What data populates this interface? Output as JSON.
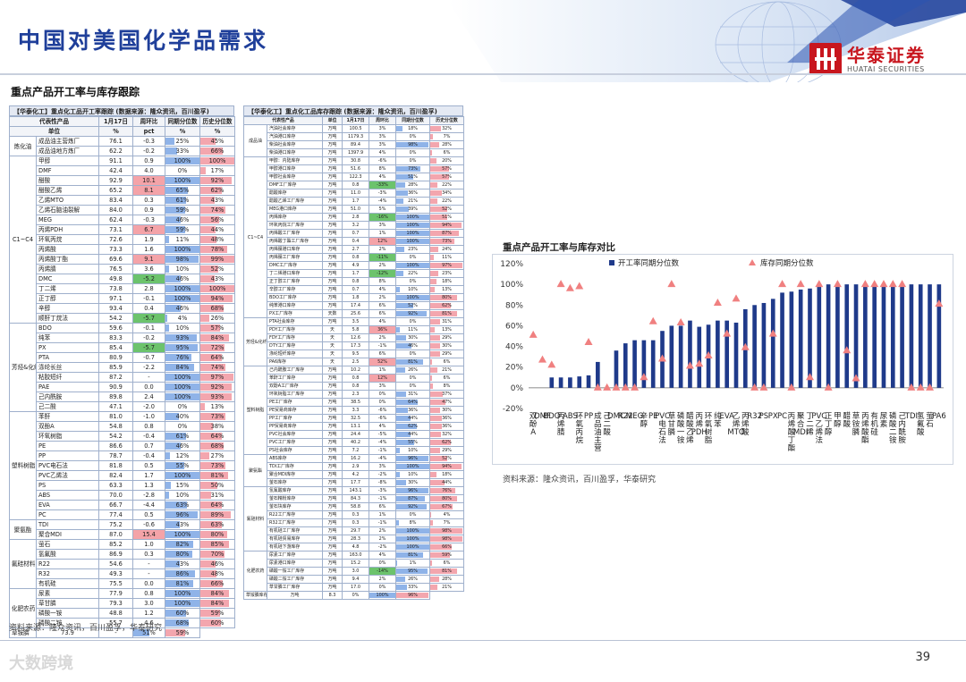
{
  "title": "中国对美国化学品需求",
  "section_title": "重点产品开工率与库存跟踪",
  "logo": {
    "cn": "华泰证券",
    "en": "HUATAI SECURITIES"
  },
  "page_number": "39",
  "watermark": "大数跨境",
  "left_table": {
    "caption": "【华泰化工】重点化工品开工率跟踪 (数据来源：隆众资讯，百川盈孚)",
    "headers": [
      "代表性产品",
      "1月17日",
      "周环比",
      "同期分位数",
      "历史分位数"
    ],
    "units": [
      "单位",
      "%",
      "pct",
      "%",
      "%"
    ],
    "groups": [
      {
        "name": "炼化油",
        "rows": 2
      },
      {
        "name": "C1~C4",
        "rows": 17
      },
      {
        "name": "芳烃&化纤",
        "rows": 9
      },
      {
        "name": "塑料树脂",
        "rows": 11
      },
      {
        "name": "聚氨酯",
        "rows": 2
      },
      {
        "name": "氟硅材料",
        "rows": 5
      },
      {
        "name": "化肥农药",
        "rows": 4
      }
    ],
    "rows": [
      [
        "成品油主营炼厂",
        "76.1",
        "-0.3",
        "25%",
        "45%"
      ],
      [
        "成品油地方炼厂",
        "62.2",
        "-0.2",
        "33%",
        "66%"
      ],
      [
        "甲醇",
        "91.1",
        "0.9",
        "100%",
        "100%"
      ],
      [
        "DMF",
        "42.4",
        "4.0",
        "0%",
        "17%"
      ],
      [
        "醋酸",
        "92.9",
        "10.1",
        "100%",
        "92%"
      ],
      [
        "醋酸乙烯",
        "65.2",
        "8.1",
        "65%",
        "62%"
      ],
      [
        "乙烯MTO",
        "83.4",
        "0.3",
        "61%",
        "43%"
      ],
      [
        "乙烯石脑油裂解",
        "84.0",
        "0.9",
        "59%",
        "74%"
      ],
      [
        "MEG",
        "62.4",
        "-0.3",
        "46%",
        "56%"
      ],
      [
        "丙烯PDH",
        "73.1",
        "6.7",
        "59%",
        "44%"
      ],
      [
        "环氧丙烷",
        "72.6",
        "1.9",
        "11%",
        "48%"
      ],
      [
        "丙烯酸",
        "73.3",
        "1.6",
        "100%",
        "78%"
      ],
      [
        "丙烯酸丁酯",
        "69.6",
        "9.1",
        "98%",
        "99%"
      ],
      [
        "丙烯腈",
        "76.5",
        "3.6",
        "10%",
        "52%"
      ],
      [
        "DMC",
        "49.8",
        "-5.2",
        "46%",
        "43%"
      ],
      [
        "丁二烯",
        "73.8",
        "2.8",
        "100%",
        "100%"
      ],
      [
        "正丁醇",
        "97.1",
        "-0.1",
        "100%",
        "94%"
      ],
      [
        "辛醇",
        "93.4",
        "0.4",
        "46%",
        "68%"
      ],
      [
        "顺酐丁烷法",
        "54.2",
        "-5.7",
        "4%",
        "26%"
      ],
      [
        "BDO",
        "59.6",
        "-0.1",
        "10%",
        "57%"
      ],
      [
        "纯苯",
        "83.3",
        "-0.2",
        "93%",
        "84%"
      ],
      [
        "PX",
        "85.4",
        "-5.7",
        "95%",
        "72%"
      ],
      [
        "PTA",
        "80.9",
        "-0.7",
        "76%",
        "64%"
      ],
      [
        "涤纶长丝",
        "85.9",
        "-2.2",
        "84%",
        "74%"
      ],
      [
        "粘胶短纤",
        "87.2",
        "-",
        "100%",
        "97%"
      ],
      [
        "PAE",
        "90.9",
        "0.0",
        "100%",
        "92%"
      ],
      [
        "己内酰胺",
        "89.8",
        "2.4",
        "100%",
        "93%"
      ],
      [
        "己二酸",
        "47.1",
        "-2.0",
        "0%",
        "13%"
      ],
      [
        "苯酐",
        "81.0",
        "-1.0",
        "40%",
        "73%"
      ],
      [
        "双酚A",
        "54.8",
        "0.8",
        "0%",
        "38%"
      ],
      [
        "环氧树脂",
        "54.2",
        "-0.4",
        "61%",
        "64%"
      ],
      [
        "PE",
        "86.6",
        "0.7",
        "46%",
        "68%"
      ],
      [
        "PP",
        "78.7",
        "-0.4",
        "12%",
        "27%"
      ],
      [
        "PVC电石法",
        "81.8",
        "0.5",
        "55%",
        "73%"
      ],
      [
        "PVC乙烯法",
        "82.4",
        "1.7",
        "100%",
        "81%"
      ],
      [
        "PS",
        "63.3",
        "1.3",
        "15%",
        "50%"
      ],
      [
        "ABS",
        "70.0",
        "-2.8",
        "10%",
        "31%"
      ],
      [
        "EVA",
        "66.7",
        "-4.4",
        "63%",
        "64%"
      ],
      [
        "PC",
        "77.4",
        "0.5",
        "96%",
        "89%"
      ],
      [
        "TDI",
        "75.2",
        "-0.6",
        "43%",
        "63%"
      ],
      [
        "聚合MDI",
        "87.0",
        "15.4",
        "100%",
        "80%"
      ],
      [
        "萤石",
        "85.2",
        "1.0",
        "82%",
        "85%"
      ],
      [
        "氢氟酸",
        "86.9",
        "0.3",
        "80%",
        "70%"
      ],
      [
        "R22",
        "54.6",
        "-",
        "43%",
        "46%"
      ],
      [
        "R32",
        "49.3",
        "-",
        "86%",
        "48%"
      ],
      [
        "有机硅",
        "75.5",
        "0.0",
        "81%",
        "66%"
      ],
      [
        "尿素",
        "77.9",
        "0.8",
        "100%",
        "84%"
      ],
      [
        "草甘膦",
        "79.3",
        "3.0",
        "100%",
        "84%"
      ],
      [
        "磷酸一铵",
        "48.8",
        "1.2",
        "60%",
        "59%"
      ],
      [
        "磷酸二铵",
        "55.7",
        "4.6",
        "68%",
        "60%"
      ],
      [
        "草铵膦",
        "73.9",
        "-",
        "51%",
        "59%"
      ]
    ],
    "source": "资料来源：隆众资讯，百川盈孚，华泰研究"
  },
  "right_table": {
    "caption": "【华泰化工】重点化工品库存跟踪 (数据来源：隆众资讯，百川盈孚)",
    "headers": [
      "代表性产品",
      "单位",
      "1月17日",
      "周环比",
      "同期分位数",
      "历史分位数"
    ],
    "groups": [
      {
        "name": "成品油",
        "rows": 4
      },
      {
        "name": "C1~C4",
        "rows": 20
      },
      {
        "name": "芳烃&化纤",
        "rows": 6
      },
      {
        "name": "塑料树脂",
        "rows": 11
      },
      {
        "name": "聚氨酯",
        "rows": 4
      },
      {
        "name": "氟硅材料",
        "rows": 8
      },
      {
        "name": "化肥农药",
        "rows": 5
      }
    ],
    "rows": [
      [
        "汽油社会库存",
        "万吨",
        "100.5",
        "3%",
        "18%",
        "32%"
      ],
      [
        "汽油港口库存",
        "万吨",
        "1179.3",
        "3%",
        "0%",
        "7%"
      ],
      [
        "柴油社会库存",
        "万吨",
        "89.4",
        "3%",
        "98%",
        "28%"
      ],
      [
        "柴油港口库存",
        "万吨",
        "1397.9",
        "4%",
        "0%",
        "6%"
      ],
      [
        "甲醇：内陆库存",
        "万吨",
        "30.8",
        "-6%",
        "0%",
        "20%"
      ],
      [
        "甲醇港口库存",
        "万吨",
        "51.6",
        "8%",
        "73%",
        "57%"
      ],
      [
        "甲醇社会库存",
        "万吨",
        "122.3",
        "4%",
        "51%",
        "57%"
      ],
      [
        "DMF工厂库存",
        "万吨",
        "0.8",
        "-33%",
        "28%",
        "22%"
      ],
      [
        "醋酸库存",
        "万吨",
        "11.0",
        "-3%",
        "36%",
        "34%"
      ],
      [
        "醋酸乙烯工厂库存",
        "万吨",
        "1.7",
        "-4%",
        "21%",
        "22%"
      ],
      [
        "MEG港口库存",
        "万吨",
        "51.0",
        "5%",
        "39%",
        "52%"
      ],
      [
        "丙烯库存",
        "万吨",
        "2.8",
        "-16%",
        "100%",
        "51%"
      ],
      [
        "环氧丙烷工厂库存",
        "万吨",
        "3.2",
        "3%",
        "100%",
        "94%"
      ],
      [
        "丙烯酸工厂库存",
        "万吨",
        "0.7",
        "1%",
        "100%",
        "87%"
      ],
      [
        "丙烯酸丁酯工厂库存",
        "万吨",
        "0.4",
        "12%",
        "100%",
        "73%"
      ],
      [
        "丙烯腈港口库存",
        "万吨",
        "2.7",
        "2%",
        "23%",
        "24%"
      ],
      [
        "丙烯腈工厂库存",
        "万吨",
        "0.8",
        "-11%",
        "0%",
        "11%"
      ],
      [
        "DMC工厂库存",
        "万吨",
        "4.9",
        "2%",
        "100%",
        "97%"
      ],
      [
        "丁二烯港口库存",
        "万吨",
        "1.7",
        "-12%",
        "22%",
        "23%"
      ],
      [
        "正丁醇工厂库存",
        "万吨",
        "0.8",
        "8%",
        "0%",
        "18%"
      ],
      [
        "辛醇工厂库存",
        "万吨",
        "0.7",
        "4%",
        "10%",
        "13%"
      ],
      [
        "BDO工厂库存",
        "万吨",
        "1.8",
        "2%",
        "100%",
        "80%"
      ],
      [
        "纯苯港口库存",
        "万吨",
        "17.4",
        "6%",
        "52%",
        "62%"
      ],
      [
        "PX工厂库存",
        "天数",
        "25.6",
        "6%",
        "92%",
        "81%"
      ],
      [
        "PTA社会库存",
        "万吨",
        "3.5",
        "4%",
        "0%",
        "31%"
      ],
      [
        "PDY工厂库存",
        "天",
        "5.8",
        "36%",
        "11%",
        "13%"
      ],
      [
        "FDY工厂库存",
        "天",
        "12.6",
        "2%",
        "30%",
        "29%"
      ],
      [
        "DTY工厂库存",
        "天",
        "17.3",
        "-1%",
        "46%",
        "30%"
      ],
      [
        "涤纶短纤库存",
        "天",
        "9.5",
        "6%",
        "0%",
        "29%"
      ],
      [
        "PA6库存",
        "天",
        "2.5",
        "52%",
        "81%",
        "6%"
      ],
      [
        "己内酰胺工厂库存",
        "万吨",
        "10.2",
        "1%",
        "26%",
        "21%"
      ],
      [
        "苯酐工厂库存",
        "万吨",
        "0.8",
        "12%",
        "0%",
        "6%"
      ],
      [
        "双酚A工厂库存",
        "万吨",
        "0.8",
        "3%",
        "0%",
        "8%"
      ],
      [
        "环氧树脂工厂库存",
        "万吨",
        "2.3",
        "0%",
        "31%",
        "37%"
      ],
      [
        "PE工厂库存",
        "万吨",
        "38.5",
        "0%",
        "64%",
        "47%"
      ],
      [
        "PE贸易商库存",
        "万吨",
        "3.3",
        "-6%",
        "36%",
        "30%"
      ],
      [
        "PP工厂库存",
        "万吨",
        "32.5",
        "-6%",
        "44%",
        "36%"
      ],
      [
        "PP贸易商库存",
        "万吨",
        "13.1",
        "4%",
        "62%",
        "36%"
      ],
      [
        "PVC社会库存",
        "万吨",
        "24.4",
        "-5%",
        "44%",
        "32%"
      ],
      [
        "PVC工厂库存",
        "万吨",
        "40.2",
        "-4%",
        "55%",
        "62%"
      ],
      [
        "PS社会库存",
        "万吨",
        "7.2",
        "-1%",
        "10%",
        "29%"
      ],
      [
        "ABS库存",
        "万吨",
        "16.2",
        "-4%",
        "96%",
        "52%"
      ],
      [
        "TDI工厂库存",
        "万吨",
        "2.9",
        "3%",
        "100%",
        "94%"
      ],
      [
        "聚合MDI库存",
        "万吨",
        "4.2",
        "-2%",
        "10%",
        "18%"
      ],
      [
        "萤石库存",
        "万吨",
        "17.7",
        "-8%",
        "30%",
        "44%"
      ],
      [
        "氢氟酸库存",
        "万吨",
        "143.1",
        "-3%",
        "96%",
        "76%"
      ],
      [
        "萤石精粉库存",
        "万吨",
        "84.3",
        "-1%",
        "87%",
        "80%"
      ],
      [
        "萤石块库存",
        "万吨",
        "58.8",
        "6%",
        "92%",
        "67%"
      ],
      [
        "R22工厂库存",
        "万吨",
        "0.3",
        "1%",
        "0%",
        "4%"
      ],
      [
        "R32工厂库存",
        "万吨",
        "0.3",
        "-1%",
        "8%",
        "7%"
      ],
      [
        "有机硅工厂库存",
        "万吨",
        "29.7",
        "2%",
        "100%",
        "98%"
      ],
      [
        "有机硅贸易库存",
        "万吨",
        "28.3",
        "2%",
        "100%",
        "98%"
      ],
      [
        "有机硅下游库存",
        "万吨",
        "4.8",
        "-2%",
        "100%",
        "66%"
      ],
      [
        "尿素工厂库存",
        "万吨",
        "163.0",
        "4%",
        "81%",
        "59%"
      ],
      [
        "尿素港口库存",
        "万吨",
        "15.2",
        "0%",
        "1%",
        "6%"
      ],
      [
        "磷酸一铵工厂库存",
        "万吨",
        "3.0",
        "-14%",
        "95%",
        "81%"
      ],
      [
        "磷酸二铵工厂库存",
        "万吨",
        "9.4",
        "2%",
        "26%",
        "28%"
      ],
      [
        "草甘膦工厂库存",
        "万吨",
        "17.0",
        "0%",
        "33%",
        "21%"
      ],
      [
        "草铵膦库存",
        "万吨",
        "8.3",
        "0%",
        "100%",
        "96%"
      ]
    ]
  },
  "chart": {
    "title": "重点产品开工率与库存对比",
    "source": "资料来源：隆众资讯，百川盈孚，华泰研究",
    "legend": [
      "开工率同期分位数",
      "库存同期分位数"
    ]
  },
  "chart_data": {
    "type": "bar",
    "categories": [
      "双酚A",
      "DMF",
      "BDO",
      "丙烯腈",
      "ABS",
      "环氧丙烷",
      "PP",
      "成品油主营",
      "己二酸",
      "DMC",
      "R22",
      "MEG",
      "辛醇",
      "PE",
      "PVC电石法",
      "草甘膦",
      "磷酸一铵",
      "醋酸乙烯",
      "丙烯PDH",
      "环氧树脂",
      "纯苯",
      "EVA",
      "乙烯MTO",
      "丙烯酸",
      "R32",
      "PS",
      "PX",
      "PC",
      "丙烯酸丁酯",
      "聚合MDI",
      "丁二烯",
      "PVC乙烯法",
      "正丁醇",
      "甲醇",
      "醋酸",
      "草铵膦",
      "丙烯酸酯",
      "有机硅",
      "尿素",
      "磷酸二铵",
      "己内酰胺",
      "TDI",
      "氢氟酸",
      "萤石",
      "PA6"
    ],
    "series": [
      {
        "name": "开工率同期分位数",
        "values": [
          0,
          0,
          10,
          10,
          10,
          11,
          12,
          25,
          0,
          36,
          43,
          46,
          46,
          46,
          55,
          60,
          60,
          65,
          59,
          61,
          65,
          65,
          63,
          76,
          80,
          82,
          86,
          92,
          93,
          95,
          96,
          98,
          100,
          100,
          100,
          100,
          100,
          100,
          100,
          100,
          100,
          100,
          100,
          100,
          100
        ]
      },
      {
        "name": "库存同期分位数",
        "values": [
          51,
          27,
          22,
          100,
          96,
          98,
          44,
          0,
          0,
          0,
          0,
          0,
          10,
          64,
          28,
          100,
          63,
          21,
          23,
          31,
          82,
          52,
          86,
          39,
          0,
          0,
          52,
          100,
          0,
          100,
          10,
          100,
          0,
          100,
          36,
          9,
          100,
          100,
          100,
          100,
          100,
          0,
          0,
          0,
          81
        ]
      }
    ],
    "ylim": [
      -20,
      120
    ],
    "yticks": [
      "-20%",
      "0%",
      "20%",
      "40%",
      "60%",
      "80%",
      "100%",
      "120%"
    ],
    "legend_position": "top",
    "grid": false
  },
  "colors": {
    "title": "#1f3f9a",
    "bar": "#1f3a8a",
    "marker": "#f08080",
    "brand": "#c8161e",
    "databar": "#4a78c8",
    "heat_red": "#f4a3a8",
    "heat_green": "#6cc36c"
  }
}
